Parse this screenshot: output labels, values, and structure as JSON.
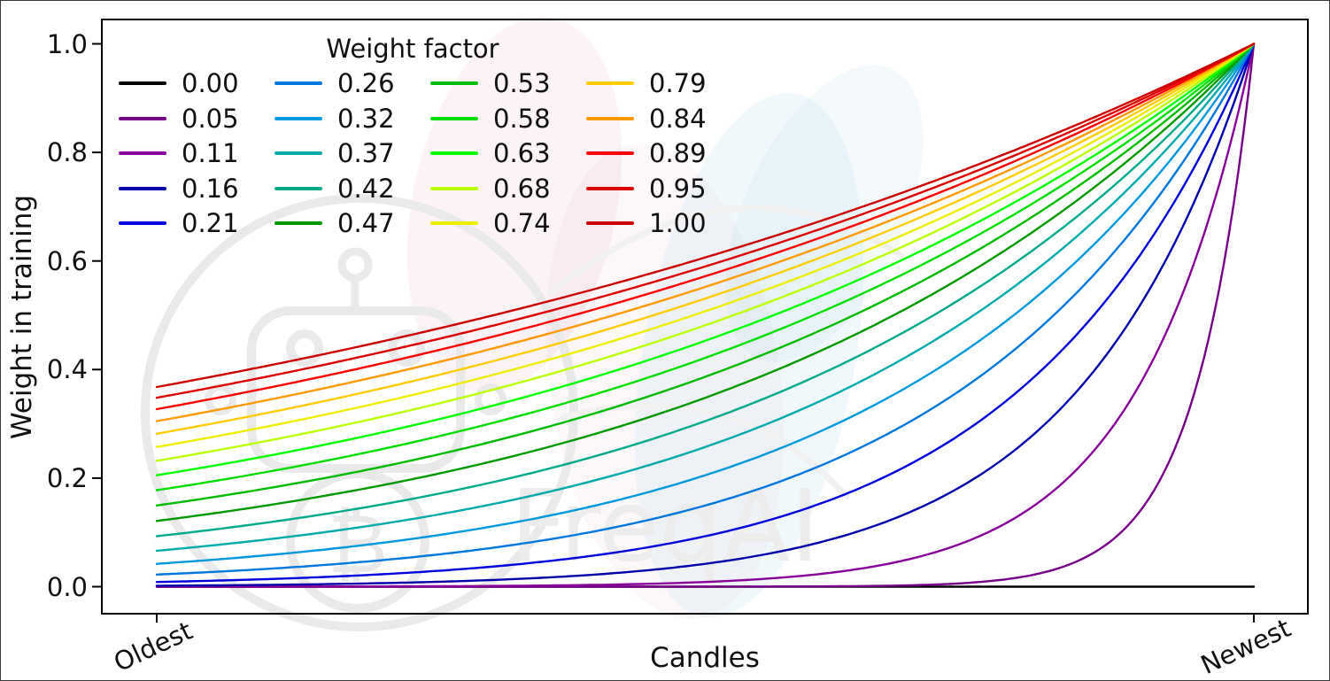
{
  "figure": {
    "watermark_text": "FreqAI",
    "watermark_symbol": "₿",
    "watermark_color": "#ececec",
    "leaf_pink": "rgba(216,138,170,0.10)",
    "leaf_blue": "rgba(137,199,227,0.12)"
  },
  "chart_data": {
    "type": "line",
    "title": "",
    "xlabel": "Candles",
    "ylabel": "Weight in training",
    "x_tick_labels": [
      "Oldest",
      "Newest"
    ],
    "y_tick_labels": [
      "0.0",
      "0.2",
      "0.4",
      "0.6",
      "0.8",
      "1.0"
    ],
    "y_ticks": [
      0,
      0.2,
      0.4,
      0.6,
      0.8,
      1.0
    ],
    "xlim": [
      -0.05,
      1.05
    ],
    "ylim": [
      -0.05,
      1.05
    ],
    "grid": false,
    "legend": {
      "title": "Weight factor",
      "columns": 4,
      "rows": 5,
      "location": "upper left",
      "frame": false
    },
    "formula": "weight(t) = exp(-(1 - t) / weight_factor), t = 0 at oldest candle, t = 1 at newest candle; weight_factor = 0 gives constant weight 0",
    "axis_color": "#000000",
    "text_color": "#111111",
    "series": [
      {
        "label": "0.00",
        "weight_factor": 0,
        "color": "#000000",
        "y_oldest": 0,
        "y_newest": 0
      },
      {
        "label": "0.05",
        "weight_factor": 0.0526,
        "color": "#770088",
        "y_oldest": 0,
        "y_newest": 1
      },
      {
        "label": "0.11",
        "weight_factor": 0.1053,
        "color": "#880099",
        "y_oldest": 0.0001,
        "y_newest": 1
      },
      {
        "label": "0.16",
        "weight_factor": 0.1579,
        "color": "#0000AA",
        "y_oldest": 0.0018,
        "y_newest": 1
      },
      {
        "label": "0.21",
        "weight_factor": 0.2105,
        "color": "#0000DD",
        "y_oldest": 0.0087,
        "y_newest": 1
      },
      {
        "label": "0.26",
        "weight_factor": 0.2632,
        "color": "#0077DD",
        "y_oldest": 0.0224,
        "y_newest": 1
      },
      {
        "label": "0.32",
        "weight_factor": 0.3158,
        "color": "#0099DD",
        "y_oldest": 0.0421,
        "y_newest": 1
      },
      {
        "label": "0.37",
        "weight_factor": 0.3684,
        "color": "#00AAAA",
        "y_oldest": 0.0662,
        "y_newest": 1
      },
      {
        "label": "0.42",
        "weight_factor": 0.4211,
        "color": "#00AA88",
        "y_oldest": 0.093,
        "y_newest": 1
      },
      {
        "label": "0.47",
        "weight_factor": 0.4737,
        "color": "#009900",
        "y_oldest": 0.1211,
        "y_newest": 1
      },
      {
        "label": "0.53",
        "weight_factor": 0.5263,
        "color": "#00BB00",
        "y_oldest": 0.1496,
        "y_newest": 1
      },
      {
        "label": "0.58",
        "weight_factor": 0.5789,
        "color": "#00DD00",
        "y_oldest": 0.1778,
        "y_newest": 1
      },
      {
        "label": "0.63",
        "weight_factor": 0.6316,
        "color": "#00FF00",
        "y_oldest": 0.2053,
        "y_newest": 1
      },
      {
        "label": "0.68",
        "weight_factor": 0.6842,
        "color": "#BBFF00",
        "y_oldest": 0.2319,
        "y_newest": 1
      },
      {
        "label": "0.74",
        "weight_factor": 0.7368,
        "color": "#EEEE00",
        "y_oldest": 0.2574,
        "y_newest": 1
      },
      {
        "label": "0.79",
        "weight_factor": 0.7895,
        "color": "#FFCC00",
        "y_oldest": 0.2817,
        "y_newest": 1
      },
      {
        "label": "0.84",
        "weight_factor": 0.8421,
        "color": "#FF9900",
        "y_oldest": 0.305,
        "y_newest": 1
      },
      {
        "label": "0.89",
        "weight_factor": 0.8947,
        "color": "#FF0000",
        "y_oldest": 0.3271,
        "y_newest": 1
      },
      {
        "label": "0.95",
        "weight_factor": 0.9474,
        "color": "#DD0000",
        "y_oldest": 0.348,
        "y_newest": 1
      },
      {
        "label": "1.00",
        "weight_factor": 1,
        "color": "#CC0000",
        "y_oldest": 0.3679,
        "y_newest": 1
      }
    ]
  }
}
